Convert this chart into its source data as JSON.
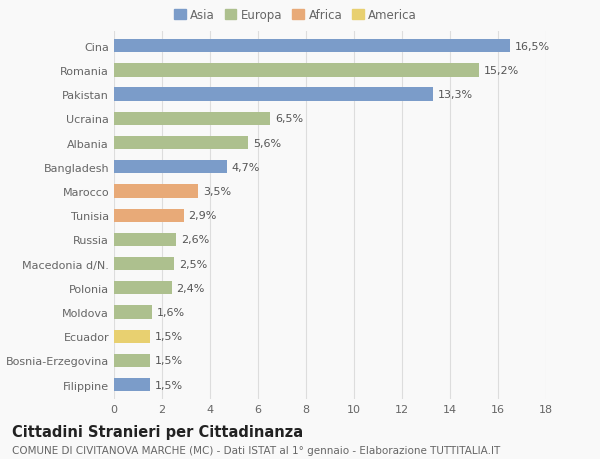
{
  "categories": [
    "Cina",
    "Romania",
    "Pakistan",
    "Ucraina",
    "Albania",
    "Bangladesh",
    "Marocco",
    "Tunisia",
    "Russia",
    "Macedonia d/N.",
    "Polonia",
    "Moldova",
    "Ecuador",
    "Bosnia-Erzegovina",
    "Filippine"
  ],
  "values": [
    16.5,
    15.2,
    13.3,
    6.5,
    5.6,
    4.7,
    3.5,
    2.9,
    2.6,
    2.5,
    2.4,
    1.6,
    1.5,
    1.5,
    1.5
  ],
  "colors": [
    "#7b9cc9",
    "#adc08e",
    "#7b9cc9",
    "#adc08e",
    "#adc08e",
    "#7b9cc9",
    "#e8aa78",
    "#e8aa78",
    "#adc08e",
    "#adc08e",
    "#adc08e",
    "#adc08e",
    "#e8d070",
    "#adc08e",
    "#7b9cc9"
  ],
  "legend": [
    {
      "label": "Asia",
      "color": "#7b9cc9"
    },
    {
      "label": "Europa",
      "color": "#adc08e"
    },
    {
      "label": "Africa",
      "color": "#e8aa78"
    },
    {
      "label": "America",
      "color": "#e8d070"
    }
  ],
  "xlim": [
    0,
    18
  ],
  "xticks": [
    0,
    2,
    4,
    6,
    8,
    10,
    12,
    14,
    16,
    18
  ],
  "title": "Cittadini Stranieri per Cittadinanza",
  "subtitle": "COMUNE DI CIVITANOVA MARCHE (MC) - Dati ISTAT al 1° gennaio - Elaborazione TUTTITALIA.IT",
  "bg_color": "#f9f9f9",
  "bar_height": 0.55,
  "label_fontsize": 8,
  "title_fontsize": 10.5,
  "subtitle_fontsize": 7.5,
  "tick_fontsize": 8,
  "grid_color": "#dddddd",
  "value_color": "#555555",
  "ytick_color": "#666666"
}
